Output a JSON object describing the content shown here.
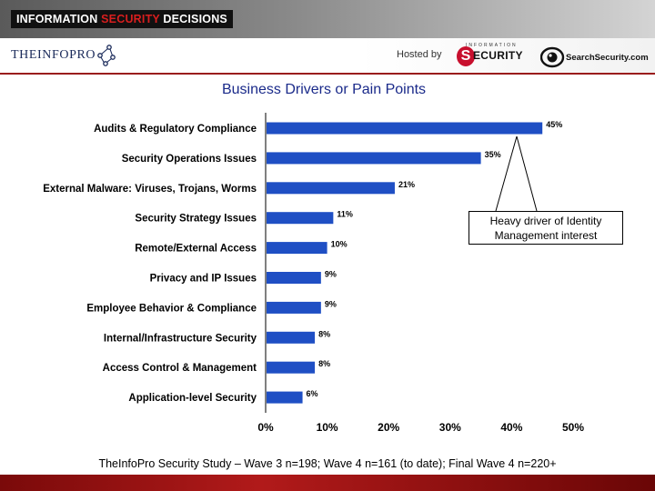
{
  "banner": {
    "title_pre": "INFORMATION ",
    "title_accent": "SECURITY",
    "title_post": " DECISIONS"
  },
  "header": {
    "logo_infopro": "THEINFOPRO",
    "hosted_by": "Hosted by",
    "security_top": "INFORMATION",
    "security_s": "S",
    "security_word": "ECURITY",
    "searchsecurity": "SearchSecurity.com"
  },
  "colors": {
    "bar": "#1f4fc4",
    "title": "#1a2a8a",
    "banner_accent": "#d81e1e",
    "bottom_band": "#9a1c1c"
  },
  "chart_data": {
    "type": "bar",
    "orientation": "horizontal",
    "title": "Business Drivers or Pain Points",
    "categories": [
      "Audits & Regulatory Compliance",
      "Security Operations Issues",
      "External Malware: Viruses, Trojans, Worms",
      "Security Strategy Issues",
      "Remote/External Access",
      "Privacy and IP Issues",
      "Employee Behavior & Compliance",
      "Internal/Infrastructure Security",
      "Access Control & Management",
      "Application-level Security"
    ],
    "values": [
      45,
      35,
      21,
      11,
      10,
      9,
      9,
      8,
      8,
      6
    ],
    "value_labels": [
      "45%",
      "35%",
      "21%",
      "11%",
      "10%",
      "9%",
      "9%",
      "8%",
      "8%",
      "6%"
    ],
    "xlim": [
      0,
      50
    ],
    "x_ticks": [
      "0%",
      "10%",
      "20%",
      "30%",
      "40%",
      "50%"
    ],
    "grid": false,
    "annotation": "Heavy driver of Identity Management interest"
  },
  "callout": {
    "line1": "Heavy driver of Identity",
    "line2": "Management interest"
  },
  "footer": {
    "source": "TheInfoPro Security Study – Wave 3 n=198; Wave 4 n=161 (to date); Final Wave 4 n=220+"
  }
}
